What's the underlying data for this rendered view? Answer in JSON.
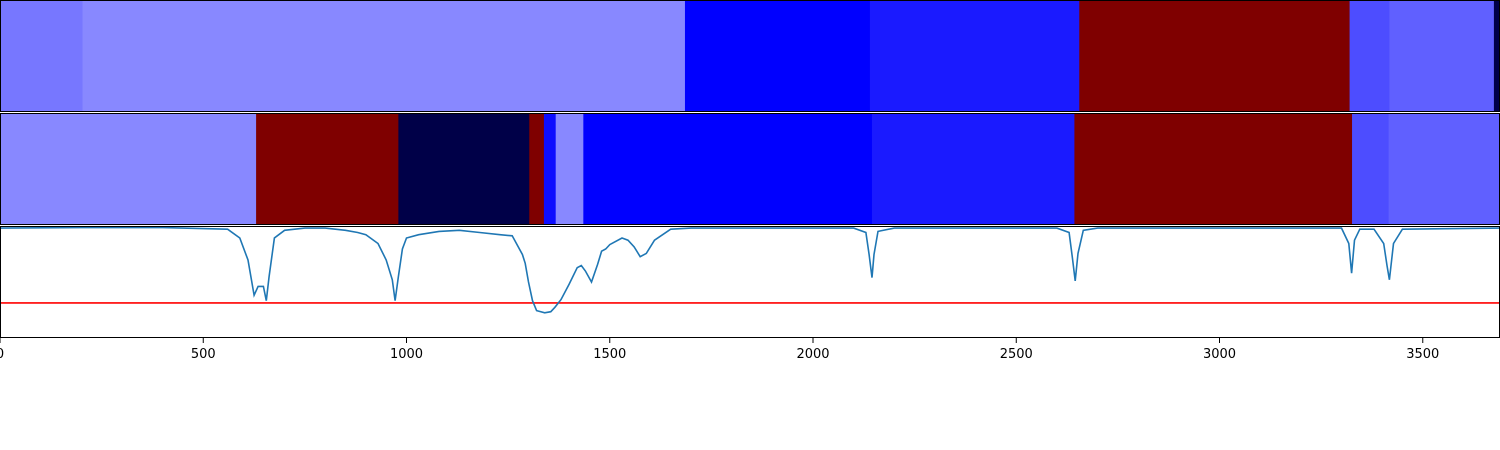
{
  "chart_data": [
    {
      "type": "heatmap",
      "name": "segment-strip-1",
      "xlim": [
        0,
        3690
      ],
      "segments": [
        {
          "start": 0,
          "end": 203,
          "color": "#7777ff"
        },
        {
          "start": 203,
          "end": 1685,
          "color": "#8888ff"
        },
        {
          "start": 1685,
          "end": 2140,
          "color": "#0000ff"
        },
        {
          "start": 2140,
          "end": 2655,
          "color": "#1a1aff"
        },
        {
          "start": 2655,
          "end": 3320,
          "color": "#7f0000"
        },
        {
          "start": 3320,
          "end": 3418,
          "color": "#4d4dff"
        },
        {
          "start": 3418,
          "end": 3675,
          "color": "#6060ff"
        },
        {
          "start": 3675,
          "end": 3690,
          "color": "#00004a"
        }
      ]
    },
    {
      "type": "heatmap",
      "name": "segment-strip-2",
      "xlim": [
        0,
        3690
      ],
      "segments": [
        {
          "start": 0,
          "end": 630,
          "color": "#8888ff"
        },
        {
          "start": 630,
          "end": 980,
          "color": "#7f0000"
        },
        {
          "start": 980,
          "end": 1302,
          "color": "#000048"
        },
        {
          "start": 1302,
          "end": 1338,
          "color": "#7f0000"
        },
        {
          "start": 1338,
          "end": 1367,
          "color": "#0d0dff"
        },
        {
          "start": 1367,
          "end": 1435,
          "color": "#8888ff"
        },
        {
          "start": 1435,
          "end": 2145,
          "color": "#0000ff"
        },
        {
          "start": 2145,
          "end": 2643,
          "color": "#1a1aff"
        },
        {
          "start": 2643,
          "end": 3326,
          "color": "#7f0000"
        },
        {
          "start": 3326,
          "end": 3416,
          "color": "#4d4dff"
        },
        {
          "start": 3416,
          "end": 3690,
          "color": "#6060ff"
        }
      ]
    },
    {
      "type": "line",
      "xlim": [
        0,
        3690
      ],
      "ylim": [
        0,
        1
      ],
      "x_ticks": [
        0,
        500,
        1000,
        1500,
        2000,
        2500,
        3000,
        3500
      ],
      "tick_labels": [
        "0",
        "500",
        "1000",
        "1500",
        "2000",
        "2500",
        "3000",
        "3500"
      ],
      "threshold": {
        "y": 0.31,
        "color": "#ff0000"
      },
      "series_color": "#1f77b4",
      "x": [
        0,
        200,
        400,
        560,
        590,
        610,
        625,
        635,
        648,
        655,
        662,
        675,
        700,
        750,
        800,
        850,
        880,
        900,
        930,
        950,
        965,
        972,
        980,
        990,
        1000,
        1030,
        1080,
        1130,
        1180,
        1230,
        1260,
        1285,
        1292,
        1300,
        1310,
        1320,
        1340,
        1355,
        1365,
        1380,
        1400,
        1420,
        1430,
        1440,
        1455,
        1470,
        1480,
        1490,
        1500,
        1510,
        1530,
        1545,
        1560,
        1575,
        1590,
        1610,
        1650,
        1700,
        2100,
        2130,
        2138,
        2145,
        2150,
        2160,
        2200,
        2600,
        2630,
        2638,
        2645,
        2652,
        2665,
        2700,
        3300,
        3318,
        3325,
        3332,
        3345,
        3380,
        3404,
        3412,
        3418,
        3428,
        3450,
        3690
      ],
      "y": [
        0.99,
        0.995,
        0.995,
        0.98,
        0.9,
        0.7,
        0.38,
        0.46,
        0.46,
        0.33,
        0.55,
        0.9,
        0.97,
        0.99,
        0.99,
        0.97,
        0.95,
        0.93,
        0.85,
        0.7,
        0.52,
        0.33,
        0.55,
        0.8,
        0.9,
        0.93,
        0.96,
        0.97,
        0.95,
        0.93,
        0.92,
        0.75,
        0.67,
        0.5,
        0.33,
        0.24,
        0.22,
        0.23,
        0.27,
        0.34,
        0.48,
        0.63,
        0.65,
        0.6,
        0.5,
        0.66,
        0.78,
        0.8,
        0.84,
        0.86,
        0.9,
        0.88,
        0.82,
        0.73,
        0.76,
        0.88,
        0.98,
        0.99,
        0.99,
        0.95,
        0.75,
        0.54,
        0.75,
        0.96,
        0.99,
        0.99,
        0.95,
        0.72,
        0.51,
        0.76,
        0.97,
        0.99,
        0.99,
        0.85,
        0.58,
        0.88,
        0.98,
        0.98,
        0.85,
        0.65,
        0.52,
        0.85,
        0.98,
        0.99
      ]
    }
  ]
}
